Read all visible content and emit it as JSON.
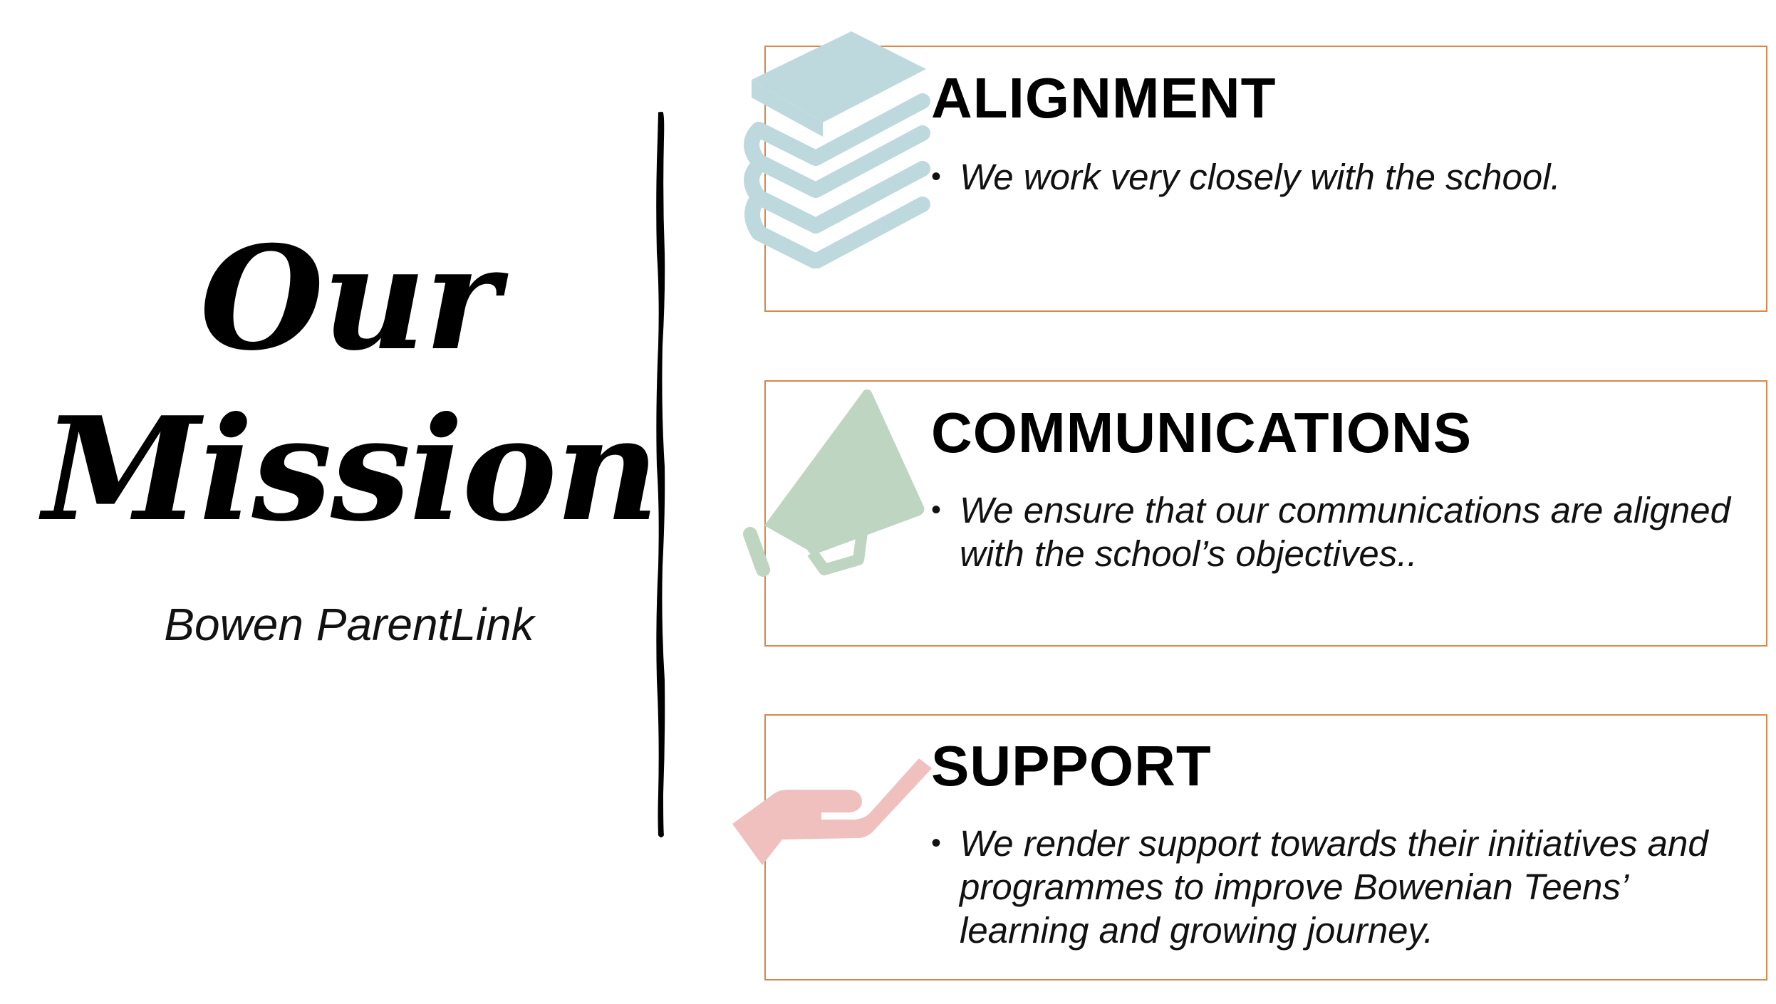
{
  "title": {
    "line1": "Our",
    "line2": "Mission"
  },
  "subtitle": "Bowen ParentLink",
  "colors": {
    "card_border": "#d9874a",
    "books_icon": "#bed9dd",
    "megaphone_icon": "#bdd5c1",
    "hand_icon": "#f0c0be",
    "divider": "#000000"
  },
  "sections": [
    {
      "heading": "ALIGNMENT",
      "icon": "books-icon",
      "bullet": "We work very closely with the school."
    },
    {
      "heading": "COMMUNICATIONS",
      "icon": "megaphone-icon",
      "bullet": "We ensure that our communications are aligned with the school’s objectives.."
    },
    {
      "heading": "SUPPORT",
      "icon": "hand-icon",
      "bullet": "We render support towards their initiatives and programmes to improve Bowenian Teens’ learning and growing journey."
    }
  ]
}
